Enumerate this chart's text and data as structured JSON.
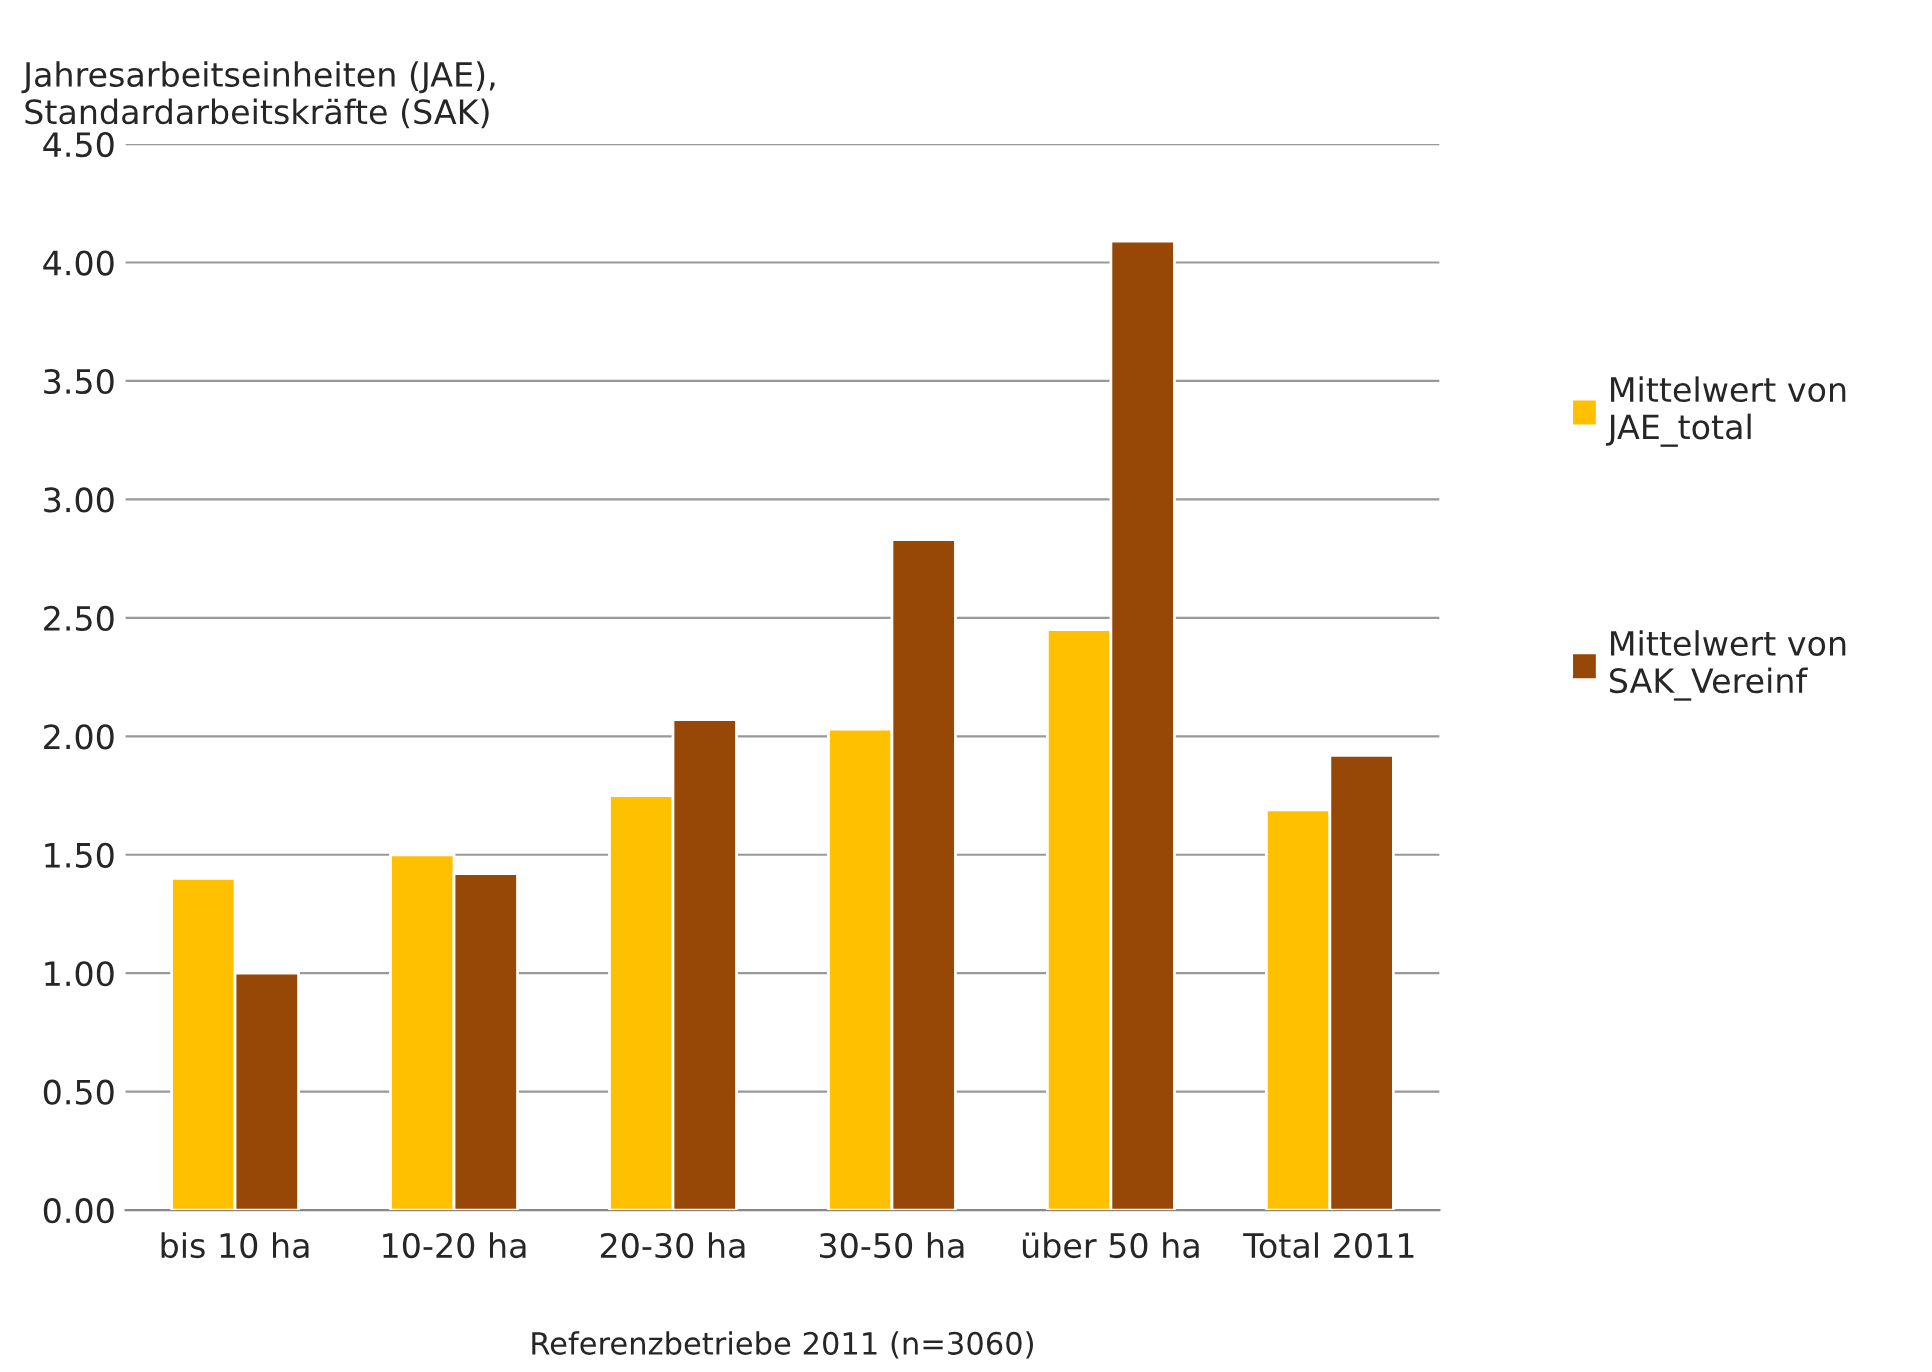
{
  "chart_data": {
    "type": "bar",
    "ylabel": "Jahresarbeitseinheiten (JAE),\nStandardarbeitskräfte (SAK)",
    "xlabel": "Referenzbetriebe 2011 (n=3060)",
    "categories": [
      "bis 10 ha",
      "10-20 ha",
      "20-30 ha",
      "30-50 ha",
      "über 50 ha",
      "Total 2011"
    ],
    "series": [
      {
        "name": "Mittelwert von\nJAE_total",
        "color": "#ffc000",
        "values": [
          1.4,
          1.5,
          1.75,
          2.03,
          2.45,
          1.69
        ]
      },
      {
        "name": "Mittelwert von\nSAK_Vereinf",
        "color": "#974706",
        "values": [
          1.0,
          1.42,
          2.07,
          2.83,
          4.09,
          1.92
        ]
      }
    ],
    "ylim": [
      0,
      4.5
    ],
    "yticks": [
      {
        "value": 0,
        "label": "0.00"
      },
      {
        "value": 0.5,
        "label": "0.50"
      },
      {
        "value": 1,
        "label": "1.00"
      },
      {
        "value": 1.5,
        "label": "1.50"
      },
      {
        "value": 2,
        "label": "2.00"
      },
      {
        "value": 2.5,
        "label": "2.50"
      },
      {
        "value": 3,
        "label": "3.00"
      },
      {
        "value": 3.5,
        "label": "3.50"
      },
      {
        "value": 4,
        "label": "4.00"
      },
      {
        "value": 4.5,
        "label": "4.50"
      }
    ],
    "grid": "y",
    "legend": "right"
  }
}
